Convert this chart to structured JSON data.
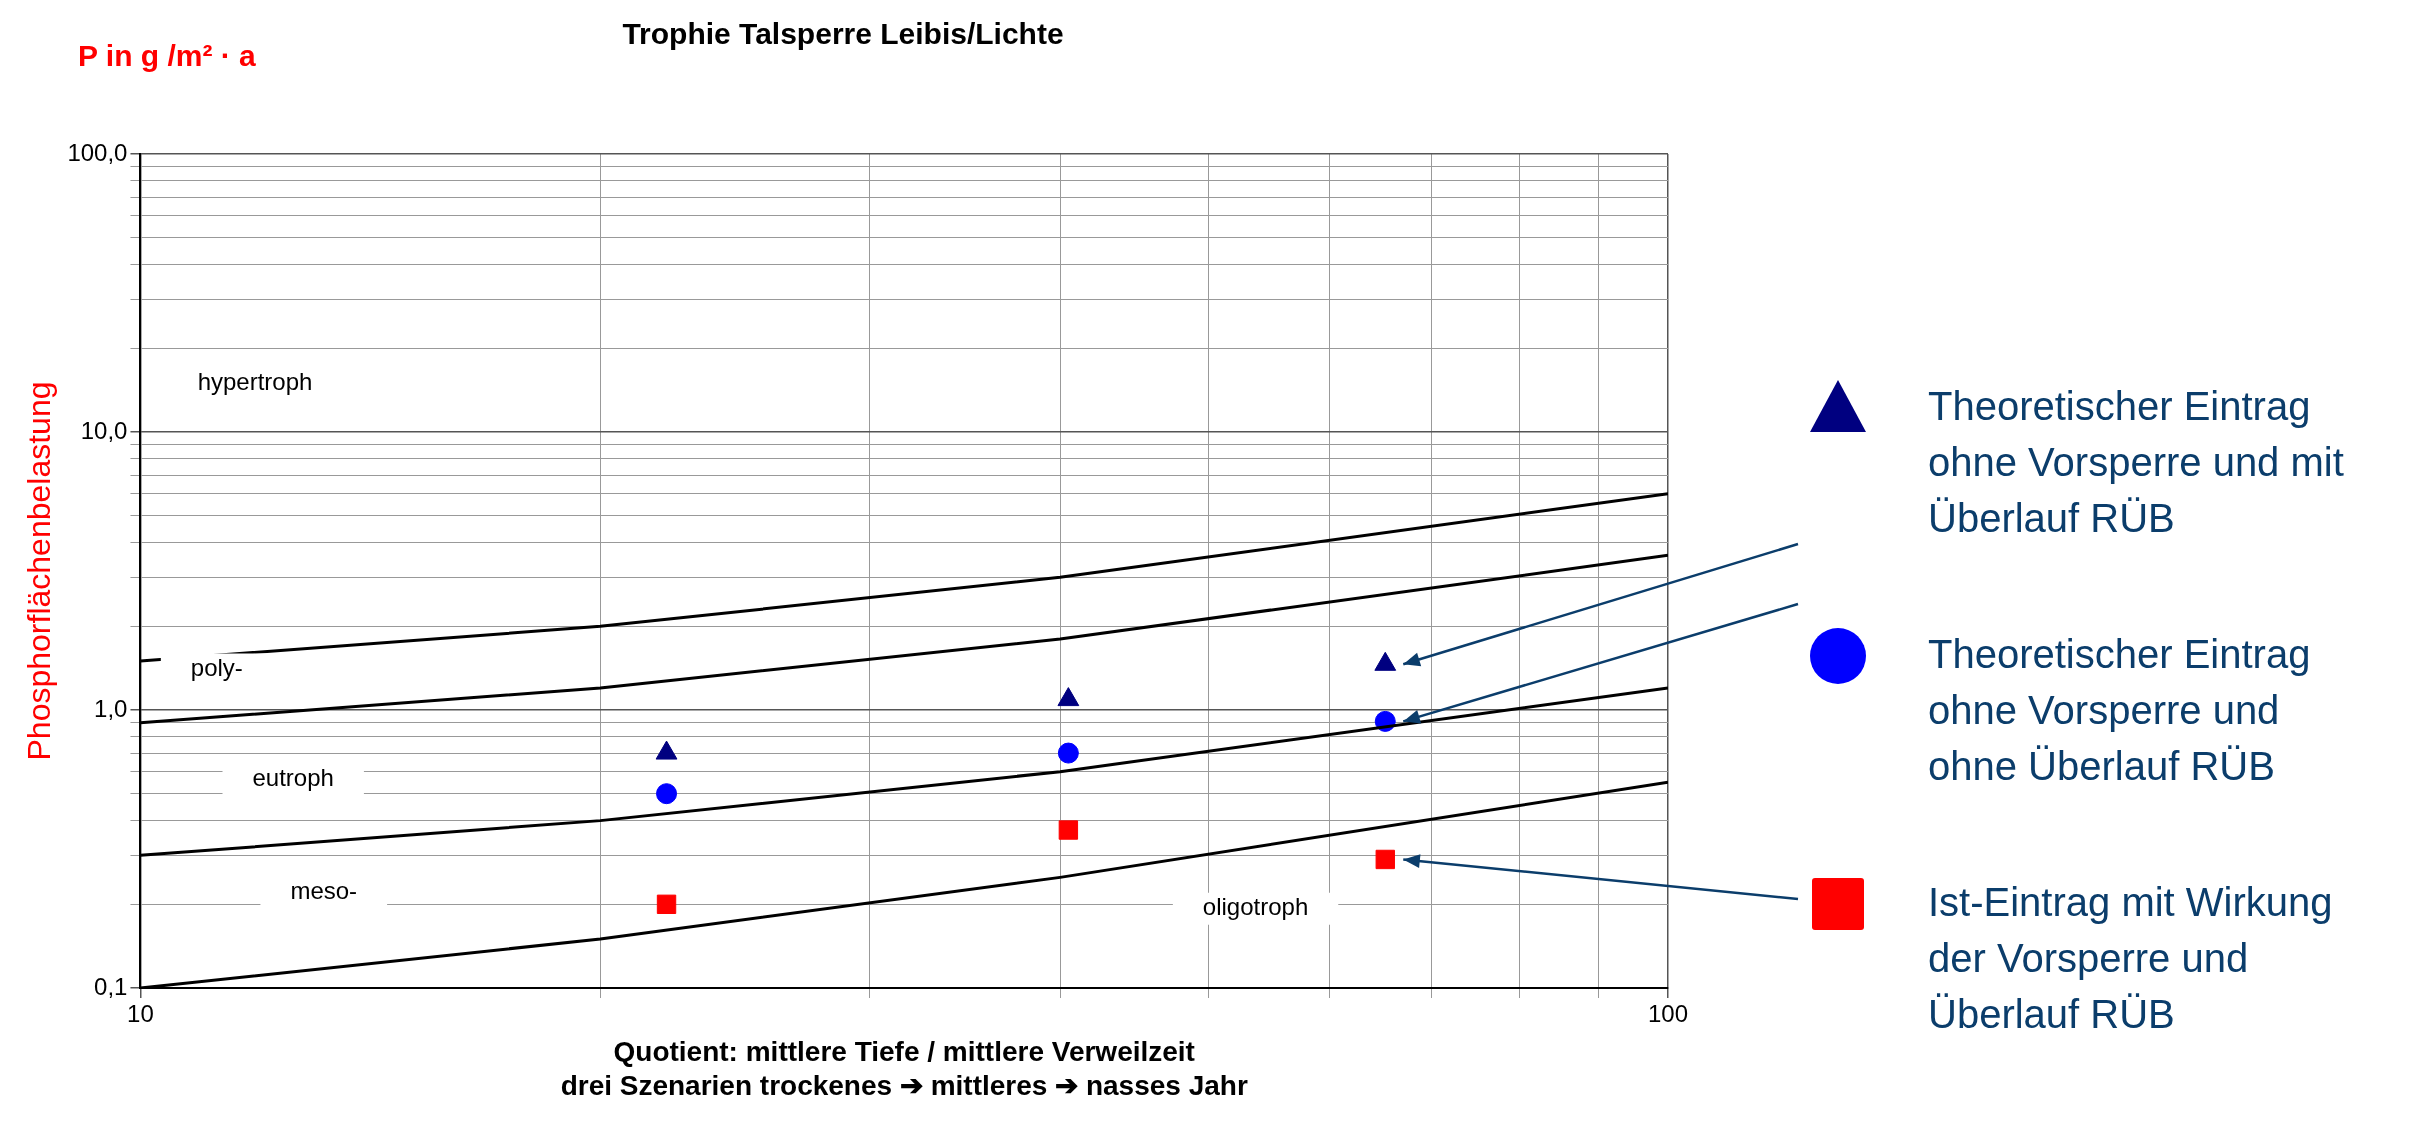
{
  "chart_data": {
    "type": "scatter",
    "title": "Trophie Talsperre Leibis/Lichte",
    "xlabel": "Quotient: mittlere Tiefe / mittlere Verweilzeit\ndrei Szenarien trockenes ➔ mittleres ➔ nasses Jahr",
    "ylabel": "Phosphorflächenbelastung",
    "annotations": [
      "P in g /m² · a",
      "hypertroph",
      "poly-",
      "eutroph",
      "meso-",
      "oligotroph"
    ],
    "log": "xy",
    "grid": true,
    "legend": "right",
    "xlim": [
      10,
      100
    ],
    "xticks": [
      10,
      {
        "value": 20,
        "label": null
      },
      {
        "value": 30,
        "label": null
      },
      {
        "value": 40,
        "label": null
      },
      {
        "value": 50,
        "label": null
      },
      {
        "value": 60,
        "label": null
      },
      {
        "value": 70,
        "label": null
      },
      {
        "value": 80,
        "label": null
      },
      {
        "value": 90,
        "label": null
      },
      100
    ],
    "ylim": [
      0.1,
      100
    ],
    "yticks": [
      {
        "value": 0.1,
        "label": "0,1"
      },
      {
        "value": 0.2,
        "label": null
      },
      {
        "value": 0.3,
        "label": null
      },
      {
        "value": 0.4,
        "label": null
      },
      {
        "value": 0.5,
        "label": null
      },
      {
        "value": 0.6,
        "label": null
      },
      {
        "value": 0.7,
        "label": null
      },
      {
        "value": 0.8,
        "label": null
      },
      {
        "value": 0.9,
        "label": null
      },
      {
        "value": 1,
        "label": "1,0"
      },
      {
        "value": 2,
        "label": null
      },
      {
        "value": 3,
        "label": null
      },
      {
        "value": 4,
        "label": null
      },
      {
        "value": 5,
        "label": null
      },
      {
        "value": 6,
        "label": null
      },
      {
        "value": 7,
        "label": null
      },
      {
        "value": 8,
        "label": null
      },
      {
        "value": 9,
        "label": null
      },
      {
        "value": 10,
        "label": "10,0"
      },
      {
        "value": 20,
        "label": null
      },
      {
        "value": 30,
        "label": null
      },
      {
        "value": 40,
        "label": null
      },
      {
        "value": 50,
        "label": null
      },
      {
        "value": 60,
        "label": null
      },
      {
        "value": 70,
        "label": null
      },
      {
        "value": 80,
        "label": null
      },
      {
        "value": 90,
        "label": null
      },
      {
        "value": 100,
        "label": "100,0"
      }
    ],
    "series": [
      {
        "type": "line",
        "color": "#000000",
        "marker": "none",
        "x": [
          10,
          20,
          40,
          100
        ],
        "values": [
          1.5,
          2.0,
          3.0,
          6.0
        ]
      },
      {
        "type": "line",
        "color": "#000000",
        "marker": "none",
        "x": [
          10,
          20,
          40,
          100
        ],
        "values": [
          0.9,
          1.2,
          1.8,
          3.6
        ]
      },
      {
        "type": "line",
        "color": "#000000",
        "marker": "none",
        "x": [
          10,
          20,
          40,
          100
        ],
        "values": [
          0.3,
          0.4,
          0.6,
          1.2
        ]
      },
      {
        "type": "line",
        "color": "#000000",
        "marker": "none",
        "x": [
          10,
          20,
          40,
          100
        ],
        "values": [
          0.1,
          0.15,
          0.25,
          0.55
        ]
      },
      {
        "name": "Theoretischer Eintrag ohne Vorsperre und mit Überlauf RÜB",
        "color": "#000080",
        "marker": "triangle",
        "x": [
          22.1,
          40.5,
          65.3
        ],
        "values": [
          0.7,
          1.09,
          1.46
        ]
      },
      {
        "name": "Theoretischer Eintrag ohne Vorsperre und ohne Überlauf RÜB",
        "color": "#0000ff",
        "marker": "circle",
        "x": [
          22.1,
          40.5,
          65.3
        ],
        "values": [
          0.5,
          0.7,
          0.91
        ]
      },
      {
        "name": "Ist-Eintrag mit Wirkung der Vorsperre und Überlauf RÜB",
        "color": "#ff0000",
        "marker": "square",
        "x": [
          22.1,
          40.5,
          65.3
        ],
        "values": [
          0.2,
          0.37,
          0.29
        ]
      }
    ]
  }
}
